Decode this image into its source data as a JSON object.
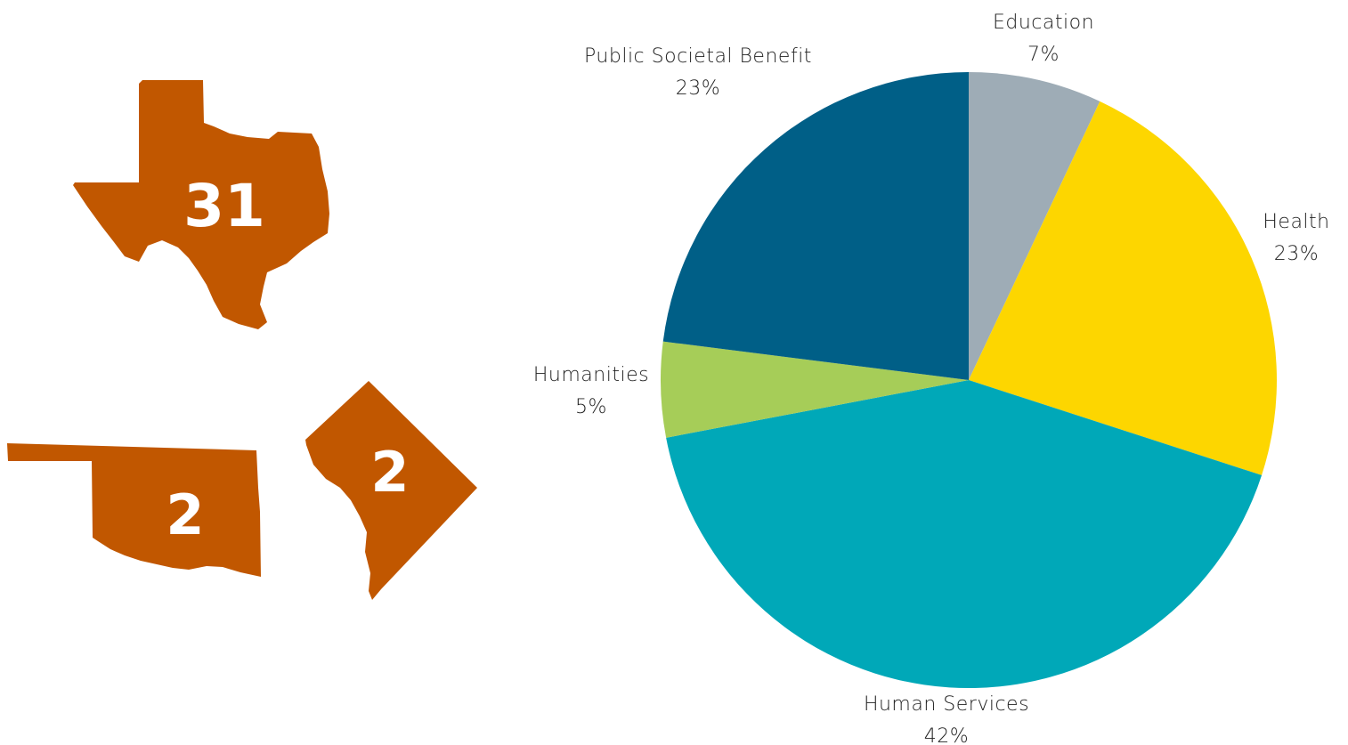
{
  "states": [
    {
      "id": "texas",
      "shape_icon": "texas-shape-icon",
      "count": "31"
    },
    {
      "id": "oklahoma",
      "shape_icon": "oklahoma-shape-icon",
      "count": "2"
    },
    {
      "id": "dc",
      "shape_icon": "district-of-columbia-shape-icon",
      "count": "2"
    }
  ],
  "colors": {
    "state_fill": "#c15700",
    "state_text": "#ffffff"
  },
  "chart_data": {
    "type": "pie",
    "start": "12 o'clock, clockwise",
    "slices": [
      {
        "label": "Education",
        "pct_text": "7%",
        "value": 7,
        "color": "#9eacb6"
      },
      {
        "label": "Health",
        "pct_text": "23%",
        "value": 23,
        "color": "#fdd600"
      },
      {
        "label": "Human Services",
        "pct_text": "42%",
        "value": 42,
        "color": "#00a8b8"
      },
      {
        "label": "Humanities",
        "pct_text": "5%",
        "value": 5,
        "color": "#a6cd58"
      },
      {
        "label": "Public Societal Benefit",
        "pct_text": "23%",
        "value": 23,
        "color": "#005f87"
      }
    ]
  }
}
